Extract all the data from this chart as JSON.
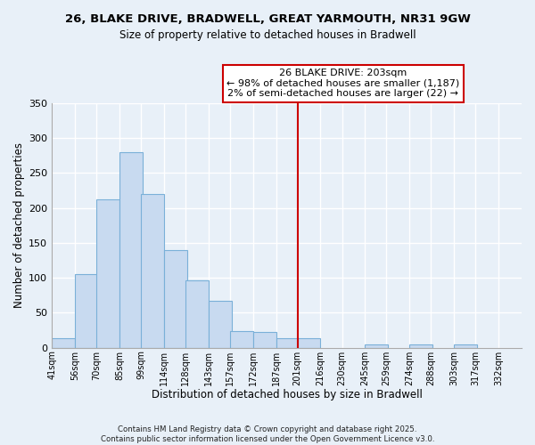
{
  "title": "26, BLAKE DRIVE, BRADWELL, GREAT YARMOUTH, NR31 9GW",
  "subtitle": "Size of property relative to detached houses in Bradwell",
  "xlabel": "Distribution of detached houses by size in Bradwell",
  "ylabel": "Number of detached properties",
  "bin_labels": [
    "41sqm",
    "56sqm",
    "70sqm",
    "85sqm",
    "99sqm",
    "114sqm",
    "128sqm",
    "143sqm",
    "157sqm",
    "172sqm",
    "187sqm",
    "201sqm",
    "216sqm",
    "230sqm",
    "245sqm",
    "259sqm",
    "274sqm",
    "288sqm",
    "303sqm",
    "317sqm",
    "332sqm"
  ],
  "bin_edges": [
    41,
    56,
    70,
    85,
    99,
    114,
    128,
    143,
    157,
    172,
    187,
    201,
    216,
    230,
    245,
    259,
    274,
    288,
    303,
    317,
    332
  ],
  "bar_heights": [
    14,
    105,
    212,
    280,
    220,
    140,
    97,
    67,
    24,
    22,
    14,
    14,
    0,
    0,
    5,
    0,
    5,
    0,
    5,
    0,
    0
  ],
  "bar_color": "#c8daf0",
  "bar_edgecolor": "#7ab0d8",
  "vline_x": 201,
  "vline_color": "#cc0000",
  "annotation_line1": "26 BLAKE DRIVE: 203sqm",
  "annotation_line2": "← 98% of detached houses are smaller (1,187)",
  "annotation_line3": "2% of semi-detached houses are larger (22) →",
  "ylim": [
    0,
    350
  ],
  "yticks": [
    0,
    50,
    100,
    150,
    200,
    250,
    300,
    350
  ],
  "footer": "Contains HM Land Registry data © Crown copyright and database right 2025.\nContains public sector information licensed under the Open Government Licence v3.0.",
  "background_color": "#e8f0f8",
  "grid_color": "#ffffff",
  "plot_bg_color": "#e8f0f8"
}
